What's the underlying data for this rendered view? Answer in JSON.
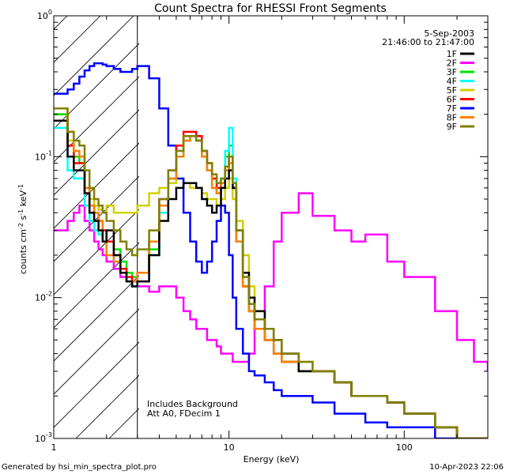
{
  "footer": {
    "left": "Generated by hsi_min_spectra_plot.pro",
    "right": "10-Apr-2023 22:06"
  },
  "chart_data": {
    "type": "line",
    "title": "Count Spectra for RHESSI Front Segments",
    "xlabel": "Energy (keV)",
    "ylabel": "counts cm-2 s-1 keV-1",
    "xscale": "log",
    "yscale": "log",
    "xlim": [
      1,
      300
    ],
    "ylim": [
      0.001,
      1.0
    ],
    "x_ticks": [
      {
        "value": 1,
        "label": "1"
      },
      {
        "value": 10,
        "label": "10"
      },
      {
        "value": 100,
        "label": "100"
      }
    ],
    "y_ticks": [
      {
        "value": 1,
        "label": "10",
        "exp": "0"
      },
      {
        "value": 0.1,
        "label": "10",
        "exp": "-1"
      },
      {
        "value": 0.01,
        "label": "10",
        "exp": "-2"
      },
      {
        "value": 0.001,
        "label": "10",
        "exp": "-3"
      }
    ],
    "date": "5-Sep-2003",
    "time_range": "21:46:00 to 21:47:00",
    "annotations": [
      "Includes Background",
      "Att A0, FDecim 1"
    ],
    "shaded_region": [
      1,
      3
    ],
    "legend_position": "top-right",
    "series": [
      {
        "name": "1F",
        "color": "#000000",
        "x": [
          1.0,
          1.1,
          1.2,
          1.3,
          1.4,
          1.5,
          1.6,
          1.7,
          1.8,
          1.9,
          2.0,
          2.2,
          2.4,
          2.6,
          2.8,
          3.0,
          3.5,
          4.0,
          4.5,
          5.0,
          5.5,
          6.0,
          6.5,
          7.0,
          7.5,
          8.0,
          8.5,
          9.0,
          9.5,
          10.0,
          10.5,
          11.0,
          12.0,
          13.0,
          14.0,
          16.0,
          18.0,
          20.0,
          25.0,
          30.0,
          40.0,
          50.0,
          60.0,
          80.0,
          100.0,
          150.0,
          200.0,
          250.0,
          300.0
        ],
        "y": [
          0.18,
          0.18,
          0.1,
          0.08,
          0.08,
          0.055,
          0.04,
          0.035,
          0.03,
          0.025,
          0.03,
          0.02,
          0.015,
          0.013,
          0.012,
          0.013,
          0.02,
          0.035,
          0.05,
          0.06,
          0.065,
          0.065,
          0.06,
          0.05,
          0.045,
          0.04,
          0.045,
          0.06,
          0.07,
          0.08,
          0.06,
          0.03,
          0.015,
          0.01,
          0.008,
          0.006,
          0.005,
          0.004,
          0.003,
          0.003,
          0.0025,
          0.002,
          0.002,
          0.0018,
          0.0015,
          0.0012,
          0.001,
          0.001,
          0.001
        ]
      },
      {
        "name": "2F",
        "color": "#ff00ff",
        "x": [
          1.0,
          1.1,
          1.2,
          1.3,
          1.4,
          1.5,
          1.6,
          1.7,
          1.8,
          1.9,
          2.0,
          2.2,
          2.4,
          2.6,
          2.8,
          3.0,
          3.5,
          4.0,
          4.5,
          5.0,
          5.5,
          6.0,
          6.5,
          7.0,
          7.5,
          8.0,
          8.5,
          9.0,
          9.5,
          10.0,
          10.5,
          11.0,
          12.0,
          13.0,
          14.0,
          16.0,
          18.0,
          20.0,
          25.0,
          30.0,
          40.0,
          50.0,
          60.0,
          80.0,
          100.0,
          150.0,
          200.0,
          250.0,
          300.0
        ],
        "y": [
          0.03,
          0.03,
          0.035,
          0.04,
          0.045,
          0.035,
          0.03,
          0.025,
          0.022,
          0.02,
          0.018,
          0.016,
          0.014,
          0.013,
          0.012,
          0.012,
          0.011,
          0.012,
          0.012,
          0.01,
          0.008,
          0.007,
          0.006,
          0.006,
          0.005,
          0.005,
          0.0045,
          0.004,
          0.004,
          0.004,
          0.0035,
          0.0035,
          0.0035,
          0.004,
          0.006,
          0.012,
          0.025,
          0.04,
          0.055,
          0.038,
          0.03,
          0.025,
          0.028,
          0.018,
          0.014,
          0.008,
          0.005,
          0.0035,
          0.003
        ]
      },
      {
        "name": "3F",
        "color": "#00e000",
        "x": [
          1.0,
          1.1,
          1.2,
          1.3,
          1.4,
          1.5,
          1.6,
          1.7,
          1.8,
          1.9,
          2.0,
          2.2,
          2.4,
          2.6,
          2.8,
          3.0,
          3.5,
          4.0,
          4.5,
          5.0,
          5.5,
          6.0,
          6.5,
          7.0,
          7.5,
          8.0,
          8.5,
          9.0,
          9.5,
          10.0,
          10.5,
          11.0,
          12.0,
          13.0,
          14.0,
          16.0,
          18.0,
          20.0,
          25.0,
          30.0,
          40.0,
          50.0,
          60.0,
          80.0,
          100.0,
          150.0,
          200.0,
          250.0,
          300.0
        ],
        "y": [
          0.2,
          0.2,
          0.15,
          0.1,
          0.09,
          0.06,
          0.045,
          0.04,
          0.035,
          0.03,
          0.025,
          0.022,
          0.018,
          0.015,
          0.014,
          0.015,
          0.022,
          0.04,
          0.07,
          0.1,
          0.13,
          0.14,
          0.13,
          0.1,
          0.08,
          0.06,
          0.055,
          0.07,
          0.1,
          0.12,
          0.06,
          0.025,
          0.012,
          0.008,
          0.006,
          0.005,
          0.004,
          0.0035,
          0.003,
          0.003,
          0.0025,
          0.002,
          0.002,
          0.0018,
          0.0015,
          0.0012,
          0.001,
          0.001,
          0.001
        ]
      },
      {
        "name": "4F",
        "color": "#00ffff",
        "x": [
          1.0,
          1.1,
          1.2,
          1.3,
          1.4,
          1.5,
          1.6,
          1.7,
          1.8,
          1.9,
          2.0,
          2.2,
          2.4,
          2.6,
          2.8,
          3.0,
          3.5,
          4.0,
          4.5,
          5.0,
          5.5,
          6.0,
          6.5,
          7.0,
          7.5,
          8.0,
          8.5,
          9.0,
          9.5,
          10.0,
          10.5,
          11.0,
          12.0,
          13.0,
          14.0,
          16.0,
          18.0,
          20.0,
          25.0,
          30.0,
          40.0,
          50.0,
          60.0,
          80.0,
          100.0,
          150.0,
          200.0,
          250.0,
          300.0
        ],
        "y": [
          0.16,
          0.16,
          0.08,
          0.07,
          0.07,
          0.045,
          0.035,
          0.03,
          0.028,
          0.025,
          0.02,
          0.018,
          0.015,
          0.013,
          0.012,
          0.013,
          0.02,
          0.04,
          0.07,
          0.1,
          0.13,
          0.14,
          0.13,
          0.1,
          0.08,
          0.06,
          0.055,
          0.07,
          0.11,
          0.16,
          0.07,
          0.025,
          0.012,
          0.008,
          0.006,
          0.005,
          0.004,
          0.0035,
          0.003,
          0.003,
          0.0025,
          0.002,
          0.002,
          0.0018,
          0.0015,
          0.0012,
          0.001,
          0.001,
          0.001
        ]
      },
      {
        "name": "5F",
        "color": "#d0d000",
        "x": [
          1.0,
          1.1,
          1.2,
          1.3,
          1.4,
          1.5,
          1.6,
          1.7,
          1.8,
          1.9,
          2.0,
          2.2,
          2.4,
          2.6,
          2.8,
          3.0,
          3.5,
          4.0,
          4.5,
          5.0,
          5.5,
          6.0,
          6.5,
          7.0,
          7.5,
          8.0,
          8.5,
          9.0,
          9.5,
          10.0,
          10.5,
          11.0,
          12.0,
          13.0,
          14.0,
          16.0,
          18.0,
          20.0,
          25.0,
          30.0,
          40.0,
          50.0,
          60.0,
          80.0,
          100.0,
          150.0,
          200.0,
          250.0,
          300.0
        ],
        "y": [
          0.2,
          0.2,
          0.13,
          0.1,
          0.1,
          0.06,
          0.05,
          0.045,
          0.042,
          0.04,
          0.045,
          0.04,
          0.04,
          0.04,
          0.04,
          0.045,
          0.055,
          0.06,
          0.065,
          0.07,
          0.065,
          0.06,
          0.06,
          0.055,
          0.05,
          0.05,
          0.045,
          0.05,
          0.06,
          0.07,
          0.05,
          0.035,
          0.02,
          0.012,
          0.008,
          0.006,
          0.005,
          0.004,
          0.0035,
          0.003,
          0.0025,
          0.002,
          0.002,
          0.0018,
          0.0015,
          0.0012,
          0.001,
          0.001,
          0.001
        ]
      },
      {
        "name": "6F",
        "color": "#ff0000",
        "x": [
          1.0,
          1.1,
          1.2,
          1.3,
          1.4,
          1.5,
          1.6,
          1.7,
          1.8,
          1.9,
          2.0,
          2.2,
          2.4,
          2.6,
          2.8,
          3.0,
          3.5,
          4.0,
          4.5,
          5.0,
          5.5,
          6.0,
          6.5,
          7.0,
          7.5,
          8.0,
          8.5,
          9.0,
          9.5,
          10.0,
          10.5,
          11.0,
          12.0,
          13.0,
          14.0,
          16.0,
          18.0,
          20.0,
          25.0,
          30.0,
          40.0,
          50.0,
          60.0,
          80.0,
          100.0,
          150.0,
          200.0,
          250.0,
          300.0
        ],
        "y": [
          0.18,
          0.18,
          0.12,
          0.09,
          0.09,
          0.055,
          0.045,
          0.04,
          0.035,
          0.03,
          0.025,
          0.02,
          0.016,
          0.014,
          0.013,
          0.015,
          0.025,
          0.05,
          0.08,
          0.12,
          0.15,
          0.15,
          0.14,
          0.11,
          0.09,
          0.07,
          0.06,
          0.065,
          0.08,
          0.1,
          0.06,
          0.025,
          0.012,
          0.008,
          0.006,
          0.005,
          0.004,
          0.0035,
          0.003,
          0.003,
          0.0025,
          0.002,
          0.002,
          0.0018,
          0.0015,
          0.0012,
          0.001,
          0.001,
          0.001
        ]
      },
      {
        "name": "7F",
        "color": "#0000ff",
        "x": [
          1.0,
          1.1,
          1.2,
          1.3,
          1.4,
          1.5,
          1.6,
          1.7,
          1.8,
          1.9,
          2.0,
          2.2,
          2.4,
          2.6,
          2.8,
          3.0,
          3.5,
          4.0,
          4.5,
          5.0,
          5.5,
          6.0,
          6.5,
          7.0,
          7.5,
          8.0,
          8.5,
          9.0,
          9.5,
          10.0,
          10.5,
          11.0,
          12.0,
          13.0,
          14.0,
          16.0,
          18.0,
          20.0,
          25.0,
          30.0,
          40.0,
          50.0,
          60.0,
          80.0,
          100.0,
          150.0,
          200.0,
          250.0,
          300.0
        ],
        "y": [
          0.28,
          0.28,
          0.3,
          0.33,
          0.37,
          0.41,
          0.44,
          0.46,
          0.46,
          0.45,
          0.44,
          0.42,
          0.4,
          0.4,
          0.42,
          0.44,
          0.36,
          0.22,
          0.12,
          0.07,
          0.04,
          0.025,
          0.018,
          0.015,
          0.018,
          0.025,
          0.035,
          0.045,
          0.04,
          0.02,
          0.01,
          0.006,
          0.004,
          0.003,
          0.0028,
          0.0025,
          0.0022,
          0.002,
          0.002,
          0.0018,
          0.0015,
          0.0015,
          0.0013,
          0.0012,
          0.0012,
          0.001,
          0.001,
          0.001,
          0.001
        ]
      },
      {
        "name": "8F",
        "color": "#ff8000",
        "x": [
          1.0,
          1.1,
          1.2,
          1.3,
          1.4,
          1.5,
          1.6,
          1.7,
          1.8,
          1.9,
          2.0,
          2.2,
          2.4,
          2.6,
          2.8,
          3.0,
          3.5,
          4.0,
          4.5,
          5.0,
          5.5,
          6.0,
          6.5,
          7.0,
          7.5,
          8.0,
          8.5,
          9.0,
          9.5,
          10.0,
          10.5,
          11.0,
          12.0,
          13.0,
          14.0,
          16.0,
          18.0,
          20.0,
          25.0,
          30.0,
          40.0,
          50.0,
          60.0,
          80.0,
          100.0,
          150.0,
          200.0,
          250.0,
          300.0
        ],
        "y": [
          0.22,
          0.22,
          0.15,
          0.11,
          0.1,
          0.06,
          0.045,
          0.04,
          0.035,
          0.025,
          0.02,
          0.018,
          0.015,
          0.013,
          0.013,
          0.015,
          0.025,
          0.045,
          0.07,
          0.1,
          0.13,
          0.14,
          0.13,
          0.1,
          0.08,
          0.06,
          0.055,
          0.065,
          0.08,
          0.09,
          0.06,
          0.025,
          0.012,
          0.008,
          0.006,
          0.005,
          0.004,
          0.0035,
          0.003,
          0.003,
          0.0025,
          0.002,
          0.002,
          0.0018,
          0.0015,
          0.0012,
          0.001,
          0.001,
          0.001
        ]
      },
      {
        "name": "9F",
        "color": "#808000",
        "x": [
          1.0,
          1.1,
          1.2,
          1.3,
          1.4,
          1.5,
          1.6,
          1.7,
          1.8,
          1.9,
          2.0,
          2.2,
          2.4,
          2.6,
          2.8,
          3.0,
          3.5,
          4.0,
          4.5,
          5.0,
          5.5,
          6.0,
          6.5,
          7.0,
          7.5,
          8.0,
          8.5,
          9.0,
          9.5,
          10.0,
          10.5,
          11.0,
          12.0,
          13.0,
          14.0,
          16.0,
          18.0,
          20.0,
          25.0,
          30.0,
          40.0,
          50.0,
          60.0,
          80.0,
          100.0,
          150.0,
          200.0,
          250.0,
          300.0
        ],
        "y": [
          0.22,
          0.22,
          0.15,
          0.13,
          0.12,
          0.08,
          0.06,
          0.05,
          0.045,
          0.04,
          0.035,
          0.03,
          0.025,
          0.022,
          0.02,
          0.022,
          0.03,
          0.05,
          0.08,
          0.11,
          0.14,
          0.14,
          0.13,
          0.11,
          0.09,
          0.075,
          0.065,
          0.07,
          0.085,
          0.1,
          0.065,
          0.03,
          0.014,
          0.009,
          0.007,
          0.006,
          0.005,
          0.004,
          0.0035,
          0.003,
          0.0025,
          0.002,
          0.002,
          0.0018,
          0.0015,
          0.0012,
          0.001,
          0.001,
          0.001
        ]
      }
    ]
  }
}
